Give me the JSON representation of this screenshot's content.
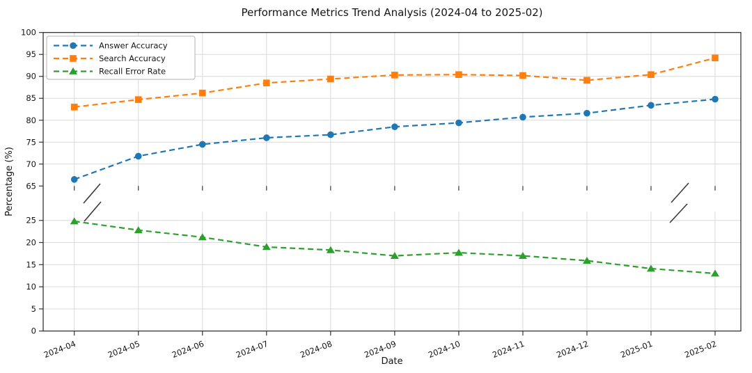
{
  "window": {
    "title": "Performance Metrics Trend Analysis (2024-04 to 2025-02)"
  },
  "chart_data": {
    "type": "line",
    "title": "Performance Metrics Trend Analysis (2024-04 to 2025-02)",
    "xlabel": "Date",
    "ylabel": "Percentage (%)",
    "categories": [
      "2024-04",
      "2024-05",
      "2024-06",
      "2024-07",
      "2024-08",
      "2024-09",
      "2024-10",
      "2024-11",
      "2024-12",
      "2025-01",
      "2025-02"
    ],
    "series": [
      {
        "name": "Answer Accuracy",
        "color": "#1f77b4",
        "marker": "circle",
        "linestyle": "dashed",
        "panel": "top",
        "values": [
          66.5,
          71.8,
          74.5,
          76.0,
          76.7,
          78.5,
          79.4,
          80.7,
          81.6,
          83.4,
          84.8
        ]
      },
      {
        "name": "Search Accuracy",
        "color": "#ff7f0e",
        "marker": "square",
        "linestyle": "dashed",
        "panel": "top",
        "values": [
          83.0,
          84.7,
          86.2,
          88.5,
          89.4,
          90.3,
          90.4,
          90.2,
          89.1,
          90.4,
          94.2
        ]
      },
      {
        "name": "Recall Error Rate",
        "color": "#2ca02c",
        "marker": "triangle",
        "linestyle": "dashed",
        "panel": "bottom",
        "values": [
          24.8,
          22.8,
          21.2,
          19.0,
          18.3,
          17.0,
          17.7,
          17.0,
          15.9,
          14.1,
          13.0
        ]
      }
    ],
    "panels": [
      {
        "id": "top",
        "ylim": [
          65,
          100
        ],
        "yticks": [
          65,
          70,
          75,
          80,
          85,
          90,
          95,
          100
        ]
      },
      {
        "id": "bottom",
        "ylim": [
          0,
          27
        ],
        "yticks": [
          0,
          5,
          10,
          15,
          20,
          25
        ]
      }
    ],
    "axis_break": true,
    "grid": true,
    "legend_position": "upper left"
  },
  "colors": {
    "background": "#ffffff",
    "grid": "#d9d9d9",
    "spine": "#222222",
    "tick": "#333333",
    "text": "#151515",
    "break_mark": "#3a3a3a",
    "legend_border": "#b3b3b3",
    "legend_background": "#ffffff"
  }
}
